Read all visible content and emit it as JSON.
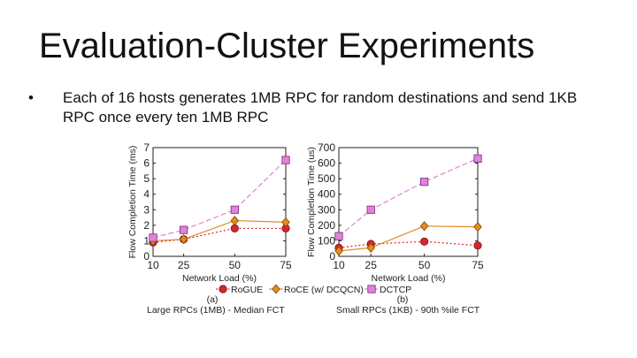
{
  "slide": {
    "title": "Evaluation-Cluster Experiments",
    "bullet_glyph": "•",
    "bullet_text": "Each of 16 hosts generates 1MB RPC for random destinations and send 1KB RPC once every ten 1MB RPC"
  },
  "legend": {
    "items": [
      {
        "label": "RoGUE",
        "color": "#d6262d",
        "marker": "circle"
      },
      {
        "label": "RoCE (w/ DCQCN)",
        "color": "#e58a1f",
        "marker": "diamond"
      },
      {
        "label": "DCTCP",
        "color": "#e082d8",
        "marker": "square"
      }
    ]
  },
  "chart_data": [
    {
      "type": "line",
      "panel": "(a)",
      "caption": "Large RPCs (1MB) - Median FCT",
      "xlabel": "Network Load (%)",
      "ylabel": "Flow Completion Time (ms)",
      "categories": [
        "10",
        "25",
        "50",
        "75"
      ],
      "yticks": [
        "0",
        "1",
        "2",
        "3",
        "4",
        "5",
        "6",
        "7"
      ],
      "ylim": [
        0,
        7
      ],
      "series": [
        {
          "name": "RoGUE",
          "color": "#d6262d",
          "marker": "circle",
          "values": [
            0.9,
            1.1,
            1.8,
            1.8
          ]
        },
        {
          "name": "RoCE (w/ DCQCN)",
          "color": "#e58a1f",
          "marker": "diamond",
          "values": [
            1.0,
            1.1,
            2.3,
            2.2
          ]
        },
        {
          "name": "DCTCP",
          "color": "#e082d8",
          "marker": "square",
          "values": [
            1.2,
            1.7,
            3.0,
            6.2
          ]
        }
      ]
    },
    {
      "type": "line",
      "panel": "(b)",
      "caption": "Small RPCs (1KB) - 90th %ile FCT",
      "xlabel": "Network Load (%)",
      "ylabel": "Flow Completion Time (us)",
      "categories": [
        "10",
        "25",
        "50",
        "75"
      ],
      "yticks": [
        "0",
        "100",
        "200",
        "300",
        "400",
        "500",
        "600",
        "700"
      ],
      "ylim": [
        0,
        700
      ],
      "series": [
        {
          "name": "RoGUE",
          "color": "#d6262d",
          "marker": "circle",
          "values": [
            55,
            80,
            95,
            70
          ]
        },
        {
          "name": "RoCE (w/ DCQCN)",
          "color": "#e58a1f",
          "marker": "diamond",
          "values": [
            35,
            55,
            195,
            190
          ]
        },
        {
          "name": "DCTCP",
          "color": "#e082d8",
          "marker": "square",
          "values": [
            130,
            300,
            480,
            630
          ]
        }
      ]
    }
  ]
}
